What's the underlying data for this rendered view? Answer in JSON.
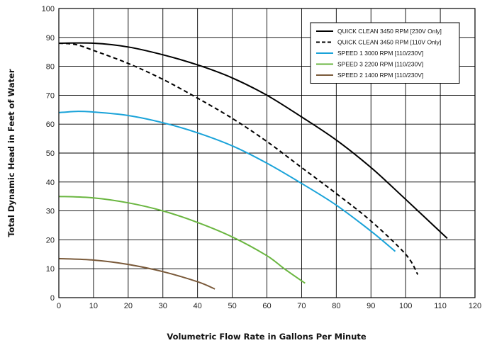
{
  "chart_data": {
    "type": "line",
    "title": "",
    "xlabel": "Volumetric Flow Rate in Gallons Per Minute",
    "ylabel": "Total Dynamic Head in Feet of Water",
    "xlim": [
      0,
      120
    ],
    "ylim": [
      0,
      100
    ],
    "x_ticks": [
      0,
      10,
      20,
      30,
      40,
      50,
      60,
      70,
      80,
      90,
      100,
      110,
      120
    ],
    "y_ticks": [
      0,
      10,
      20,
      30,
      40,
      50,
      60,
      70,
      80,
      90,
      100
    ],
    "grid": true,
    "legend_position": "top-right",
    "series": [
      {
        "name": "QUICK CLEAN 3450 RPM [230V Only]",
        "color": "#000000",
        "style": "solid",
        "points": [
          [
            0,
            88
          ],
          [
            10,
            88
          ],
          [
            20,
            86.7
          ],
          [
            30,
            84
          ],
          [
            40,
            80.5
          ],
          [
            50,
            76
          ],
          [
            60,
            70
          ],
          [
            70,
            62.5
          ],
          [
            80,
            54.5
          ],
          [
            90,
            45
          ],
          [
            100,
            34
          ],
          [
            112,
            20.5
          ]
        ]
      },
      {
        "name": "QUICK CLEAN 3450 RPM [110V Only]",
        "color": "#000000",
        "style": "dashed",
        "points": [
          [
            0,
            88
          ],
          [
            5,
            87.5
          ],
          [
            10,
            85.5
          ],
          [
            20,
            81
          ],
          [
            30,
            75.5
          ],
          [
            40,
            69
          ],
          [
            50,
            62
          ],
          [
            60,
            54
          ],
          [
            70,
            45
          ],
          [
            80,
            36
          ],
          [
            90,
            26.5
          ],
          [
            100,
            15
          ],
          [
            103.5,
            8
          ]
        ]
      },
      {
        "name": "SPEED 1 3000 RPM [110/230V]",
        "color": "#1aa3d9",
        "style": "solid",
        "points": [
          [
            0,
            64
          ],
          [
            5,
            64.4
          ],
          [
            10,
            64.2
          ],
          [
            20,
            63
          ],
          [
            30,
            60.5
          ],
          [
            40,
            57
          ],
          [
            50,
            52.5
          ],
          [
            60,
            46.5
          ],
          [
            70,
            39.5
          ],
          [
            80,
            32
          ],
          [
            90,
            23
          ],
          [
            97,
            16
          ]
        ]
      },
      {
        "name": "SPEED 3 2200 RPM [110/230V]",
        "color": "#6ab640",
        "style": "solid",
        "points": [
          [
            0,
            35
          ],
          [
            10,
            34.5
          ],
          [
            20,
            32.8
          ],
          [
            30,
            30
          ],
          [
            40,
            26
          ],
          [
            50,
            21
          ],
          [
            60,
            14.5
          ],
          [
            65,
            10
          ],
          [
            71,
            5
          ]
        ]
      },
      {
        "name": "SPEED 2 1400 RPM [110/230V]",
        "color": "#7a5a3a",
        "style": "solid",
        "points": [
          [
            0,
            13.5
          ],
          [
            10,
            13
          ],
          [
            20,
            11.5
          ],
          [
            30,
            9
          ],
          [
            40,
            5.5
          ],
          [
            45,
            3
          ]
        ]
      }
    ]
  }
}
